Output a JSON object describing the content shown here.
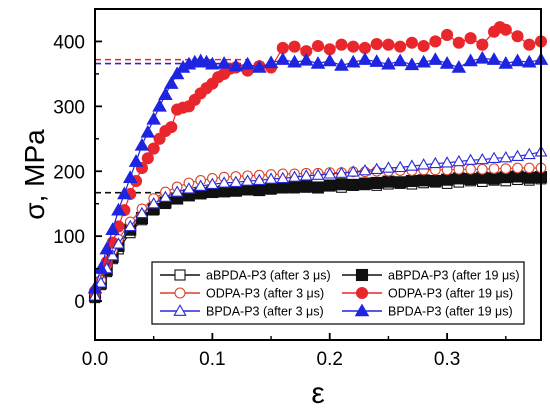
{
  "chart_data": {
    "type": "scatter",
    "xlabel": "ε",
    "ylabel": "σ, MPa",
    "xlim": [
      0,
      0.38
    ],
    "ylim": [
      -60,
      450
    ],
    "xticks": [
      0.0,
      0.1,
      0.2,
      0.3
    ],
    "xtick_labels": [
      "0.0",
      "0.1",
      "0.2",
      "0.3"
    ],
    "yticks": [
      0,
      100,
      200,
      300,
      400
    ],
    "ytick_labels": [
      "0",
      "100",
      "200",
      "300",
      "400"
    ],
    "grid": false,
    "legend_position": "bottom-right",
    "reference_lines": [
      {
        "y": 372,
        "x_start": 0.0,
        "x_end": 0.13,
        "color": "#e8262c",
        "style": "dashed"
      },
      {
        "y": 366,
        "x_start": 0.0,
        "x_end": 0.13,
        "color": "#2a2ad8",
        "style": "dashed"
      },
      {
        "y": 167,
        "x_start": 0.0,
        "x_end": 0.1,
        "color": "#111111",
        "style": "dashed"
      }
    ],
    "series": [
      {
        "name": "aBPDA-P3 (after 3 μs)",
        "marker": "square",
        "filled": false,
        "color": "#111111",
        "x": [
          0.0,
          0.005,
          0.01,
          0.015,
          0.02,
          0.03,
          0.04,
          0.05,
          0.06,
          0.07,
          0.08,
          0.09,
          0.1,
          0.11,
          0.12,
          0.13,
          0.14,
          0.15,
          0.16,
          0.17,
          0.18,
          0.19,
          0.2,
          0.21,
          0.22,
          0.23,
          0.24,
          0.25,
          0.26,
          0.27,
          0.28,
          0.29,
          0.3,
          0.31,
          0.32,
          0.33,
          0.34,
          0.35,
          0.36,
          0.37,
          0.38
        ],
        "y": [
          5,
          25,
          45,
          65,
          80,
          105,
          125,
          140,
          150,
          158,
          162,
          165,
          168,
          170,
          171,
          172,
          173,
          172,
          174,
          174,
          175,
          176,
          177,
          175,
          178,
          179,
          178,
          180,
          181,
          180,
          182,
          183,
          181,
          183,
          185,
          184,
          186,
          185,
          187,
          186,
          188
        ]
      },
      {
        "name": "aBPDA-P3 (after 19 μs)",
        "marker": "square",
        "filled": true,
        "color": "#111111",
        "x": [
          0.0,
          0.005,
          0.01,
          0.015,
          0.02,
          0.03,
          0.04,
          0.05,
          0.06,
          0.07,
          0.08,
          0.09,
          0.1,
          0.11,
          0.12,
          0.13,
          0.14,
          0.15,
          0.16,
          0.17,
          0.18,
          0.19,
          0.2,
          0.21,
          0.22,
          0.23,
          0.24,
          0.25,
          0.26,
          0.27,
          0.28,
          0.29,
          0.3,
          0.31,
          0.32,
          0.33,
          0.34,
          0.35,
          0.36,
          0.37,
          0.38
        ],
        "y": [
          8,
          28,
          48,
          68,
          85,
          110,
          128,
          142,
          152,
          158,
          163,
          166,
          168,
          169,
          170,
          172,
          171,
          174,
          175,
          176,
          177,
          175,
          178,
          180,
          179,
          181,
          182,
          184,
          183,
          185,
          186,
          185,
          187,
          189,
          188,
          190,
          189,
          191,
          192,
          190,
          191
        ]
      },
      {
        "name": "ODPA-P3 (after 3 μs)",
        "marker": "circle",
        "filled": false,
        "color": "#d9432b",
        "x": [
          0.0,
          0.005,
          0.01,
          0.015,
          0.02,
          0.03,
          0.04,
          0.05,
          0.06,
          0.07,
          0.08,
          0.09,
          0.1,
          0.11,
          0.12,
          0.13,
          0.14,
          0.15,
          0.16,
          0.17,
          0.18,
          0.19,
          0.2,
          0.21,
          0.22,
          0.23,
          0.24,
          0.25,
          0.26,
          0.27,
          0.28,
          0.29,
          0.3,
          0.31,
          0.32,
          0.33,
          0.34,
          0.35,
          0.36,
          0.37,
          0.38
        ],
        "y": [
          10,
          32,
          55,
          78,
          95,
          122,
          142,
          158,
          168,
          176,
          182,
          186,
          189,
          191,
          192,
          193,
          194,
          195,
          196,
          196,
          197,
          197,
          198,
          198,
          199,
          199,
          200,
          200,
          201,
          201,
          202,
          202,
          202,
          203,
          203,
          203,
          204,
          204,
          205,
          205,
          205
        ]
      },
      {
        "name": "ODPA-P3 (after 19 μs)",
        "marker": "circle",
        "filled": true,
        "color": "#e8262c",
        "x": [
          0.0,
          0.01,
          0.015,
          0.02,
          0.025,
          0.03,
          0.035,
          0.04,
          0.045,
          0.05,
          0.055,
          0.06,
          0.065,
          0.07,
          0.075,
          0.08,
          0.085,
          0.09,
          0.095,
          0.1,
          0.105,
          0.11,
          0.115,
          0.12,
          0.13,
          0.14,
          0.15,
          0.16,
          0.17,
          0.18,
          0.19,
          0.2,
          0.21,
          0.22,
          0.23,
          0.24,
          0.25,
          0.26,
          0.27,
          0.28,
          0.29,
          0.3,
          0.31,
          0.32,
          0.33,
          0.34,
          0.345,
          0.35,
          0.36,
          0.37,
          0.38
        ],
        "y": [
          15,
          60,
          90,
          115,
          140,
          165,
          185,
          205,
          220,
          235,
          250,
          262,
          268,
          295,
          298,
          300,
          310,
          320,
          328,
          335,
          345,
          350,
          358,
          360,
          355,
          362,
          360,
          390,
          392,
          385,
          393,
          388,
          395,
          392,
          390,
          396,
          395,
          392,
          398,
          393,
          400,
          410,
          398,
          405,
          395,
          415,
          422,
          418,
          408,
          395,
          400
        ]
      },
      {
        "name": "BPDA-P3 (after 3 μs)",
        "marker": "triangle",
        "filled": false,
        "color": "#2a2ad8",
        "x": [
          0.0,
          0.005,
          0.01,
          0.015,
          0.02,
          0.03,
          0.04,
          0.05,
          0.06,
          0.07,
          0.08,
          0.09,
          0.1,
          0.11,
          0.12,
          0.13,
          0.14,
          0.15,
          0.16,
          0.17,
          0.18,
          0.19,
          0.2,
          0.21,
          0.22,
          0.23,
          0.24,
          0.25,
          0.26,
          0.27,
          0.28,
          0.29,
          0.3,
          0.31,
          0.32,
          0.33,
          0.34,
          0.35,
          0.36,
          0.37,
          0.38
        ],
        "y": [
          8,
          28,
          50,
          70,
          88,
          115,
          135,
          150,
          160,
          168,
          173,
          177,
          180,
          182,
          183,
          185,
          186,
          188,
          189,
          191,
          193,
          194,
          196,
          197,
          199,
          201,
          203,
          205,
          206,
          208,
          210,
          212,
          213,
          215,
          217,
          218,
          220,
          221,
          223,
          226,
          230
        ]
      },
      {
        "name": "BPDA-P3 (after 19 μs)",
        "marker": "triangle",
        "filled": true,
        "color": "#1f24e0",
        "x": [
          0.0,
          0.005,
          0.01,
          0.015,
          0.02,
          0.025,
          0.03,
          0.035,
          0.04,
          0.045,
          0.05,
          0.055,
          0.06,
          0.065,
          0.07,
          0.075,
          0.08,
          0.085,
          0.09,
          0.095,
          0.1,
          0.11,
          0.12,
          0.13,
          0.14,
          0.15,
          0.16,
          0.17,
          0.18,
          0.19,
          0.2,
          0.21,
          0.22,
          0.23,
          0.24,
          0.25,
          0.26,
          0.27,
          0.28,
          0.29,
          0.3,
          0.31,
          0.32,
          0.33,
          0.34,
          0.35,
          0.36,
          0.37,
          0.38
        ],
        "y": [
          20,
          50,
          80,
          110,
          140,
          165,
          190,
          215,
          240,
          260,
          280,
          300,
          318,
          335,
          350,
          360,
          365,
          368,
          370,
          368,
          365,
          366,
          362,
          365,
          360,
          367,
          372,
          368,
          371,
          366,
          370,
          363,
          368,
          372,
          369,
          365,
          370,
          364,
          368,
          372,
          366,
          360,
          370,
          374,
          372,
          366,
          370,
          368,
          372
        ]
      }
    ]
  }
}
